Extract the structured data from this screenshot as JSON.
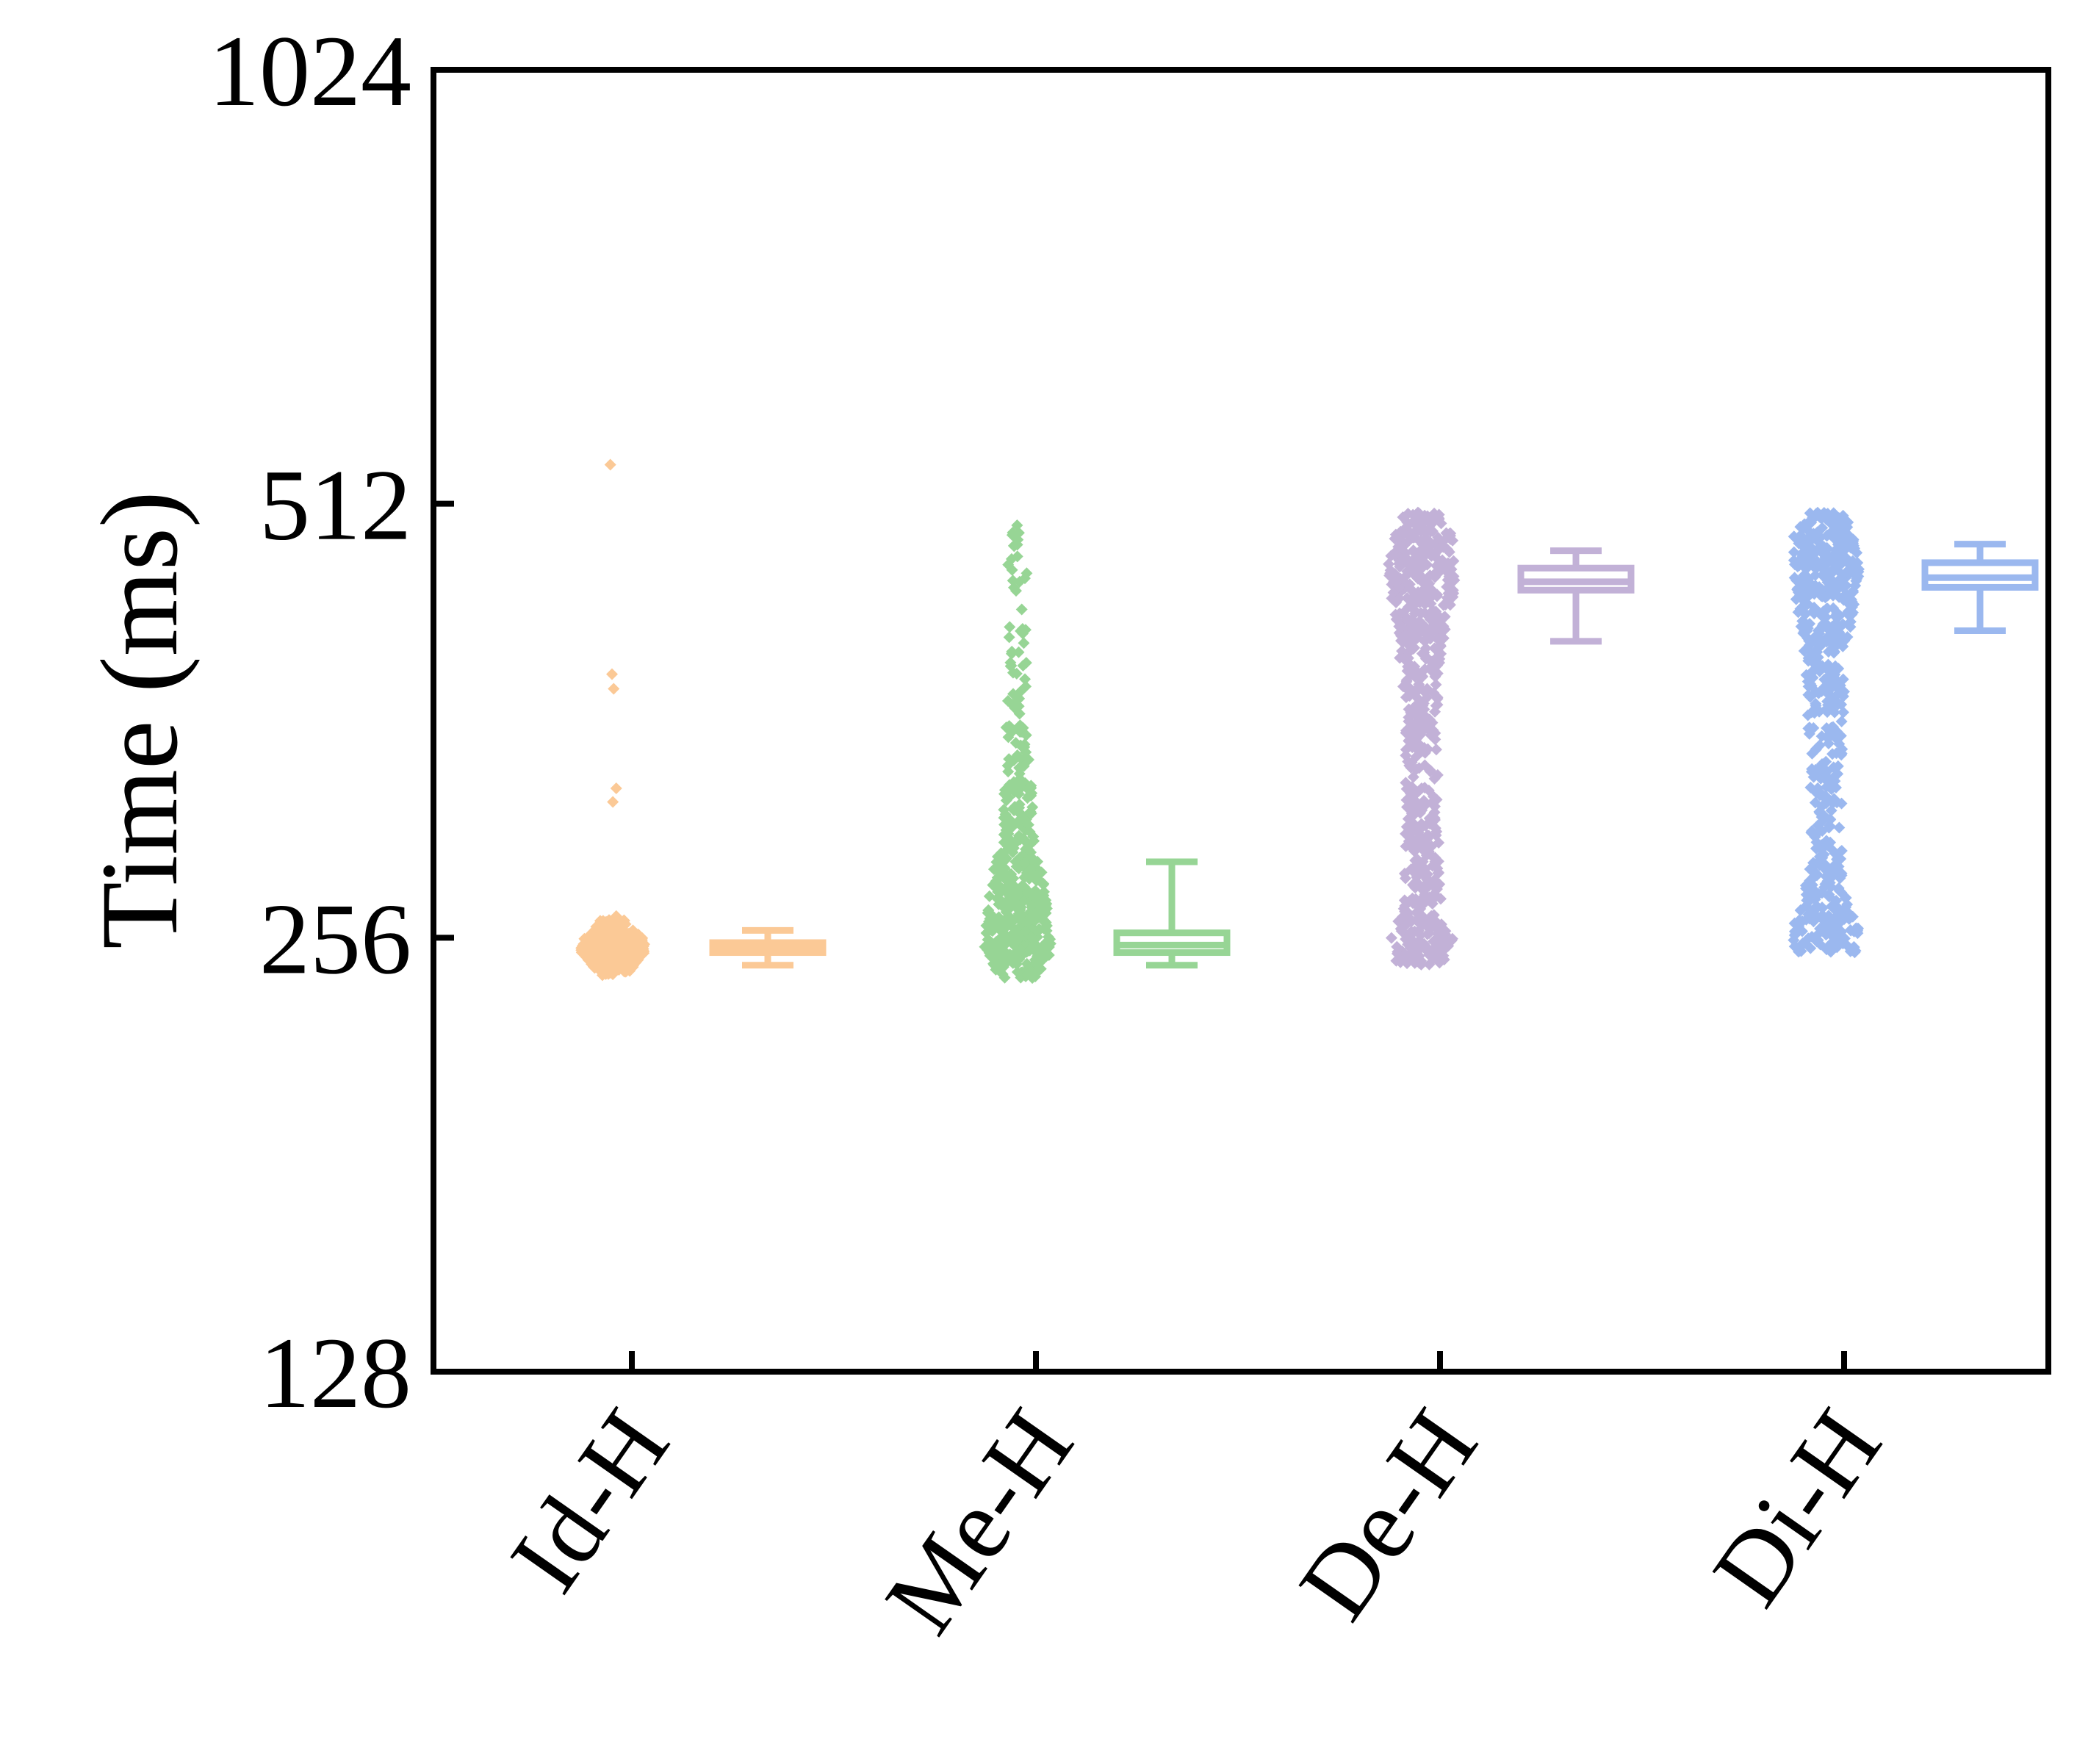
{
  "chart_data": {
    "type": "box-scatter",
    "title": "",
    "xlabel": "",
    "ylabel": "Time (ms)",
    "yscale": "log2",
    "ylim": [
      128,
      1024
    ],
    "yticks": [
      128,
      256,
      512,
      1024
    ],
    "ytick_labels": [
      "128",
      "256",
      "512",
      "1024"
    ],
    "categories": [
      "Id-H",
      "Me-H",
      "De-H",
      "Di-H"
    ],
    "grid": false,
    "legend": "none",
    "series": [
      {
        "category": "Id-H",
        "color": "#FBC996",
        "box": {
          "whisker_low": 245,
          "q1": 250,
          "median": 252,
          "q3": 254,
          "whisker_high": 259
        },
        "points": {
          "count": 380,
          "bulk": [
            [
              241,
              0.15
            ],
            [
              246,
              0.6
            ],
            [
              251,
              1.0
            ],
            [
              256,
              0.8
            ],
            [
              260,
              0.4
            ],
            [
              264,
              0.15
            ]
          ],
          "outliers": [
            265,
            318,
            325,
            381,
            390,
            545
          ]
        }
      },
      {
        "category": "Me-H",
        "color": "#97D595",
        "box": {
          "whisker_low": 245,
          "q1": 250,
          "median": 253,
          "q3": 258,
          "whisker_high": 289
        },
        "points": {
          "count": 500,
          "bulk": [
            [
              240,
              0.4
            ],
            [
              248,
              0.95
            ],
            [
              256,
              1.0
            ],
            [
              268,
              0.85
            ],
            [
              280,
              0.7
            ],
            [
              300,
              0.35
            ],
            [
              330,
              0.2
            ],
            [
              360,
              0.12
            ],
            [
              400,
              0.08
            ],
            [
              455,
              0.06
            ],
            [
              500,
              0.02
            ]
          ],
          "outliers": []
        }
      },
      {
        "category": "De-H",
        "color": "#C2B1D7",
        "box": {
          "whisker_low": 411,
          "q1": 446,
          "median": 452,
          "q3": 462,
          "whisker_high": 475
        },
        "points": {
          "count": 700,
          "bulk": [
            [
              245,
              0.6
            ],
            [
              255,
              1.0
            ],
            [
              265,
              0.55
            ],
            [
              280,
              0.4
            ],
            [
              310,
              0.3
            ],
            [
              345,
              0.32
            ],
            [
              380,
              0.4
            ],
            [
              410,
              0.6
            ],
            [
              440,
              0.9
            ],
            [
              460,
              1.0
            ],
            [
              485,
              0.95
            ],
            [
              505,
              0.3
            ]
          ],
          "outliers": []
        }
      },
      {
        "category": "Di-H",
        "color": "#9BB8EF",
        "box": {
          "whisker_low": 418,
          "q1": 448,
          "median": 455,
          "q3": 466,
          "whisker_high": 480
        },
        "points": {
          "count": 700,
          "bulk": [
            [
              250,
              0.9
            ],
            [
              260,
              1.0
            ],
            [
              270,
              0.55
            ],
            [
              285,
              0.4
            ],
            [
              310,
              0.3
            ],
            [
              345,
              0.35
            ],
            [
              380,
              0.4
            ],
            [
              410,
              0.55
            ],
            [
              440,
              0.85
            ],
            [
              460,
              1.0
            ],
            [
              485,
              0.95
            ],
            [
              505,
              0.35
            ]
          ],
          "outliers": []
        }
      }
    ]
  }
}
